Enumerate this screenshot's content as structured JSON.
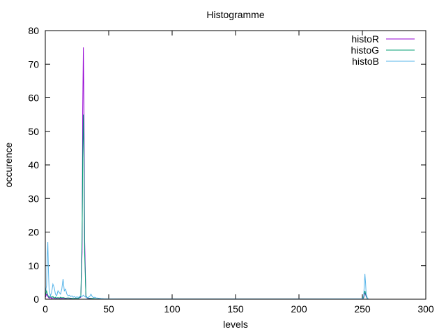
{
  "chart_data": {
    "type": "line",
    "title": "Histogramme",
    "xlabel": "levels",
    "ylabel": "occurence",
    "xlim": [
      0,
      300
    ],
    "ylim": [
      0,
      80
    ],
    "xticks": [
      0,
      50,
      100,
      150,
      200,
      250,
      300
    ],
    "yticks": [
      0,
      10,
      20,
      30,
      40,
      50,
      60,
      70,
      80
    ],
    "grid": false,
    "legend_position": "top-right",
    "series": [
      {
        "name": "histoR",
        "color": "#9400d3",
        "points": [
          [
            0,
            0.5
          ],
          [
            1,
            1.5
          ],
          [
            2,
            0.8
          ],
          [
            3,
            0.3
          ],
          [
            4,
            0.5
          ],
          [
            5,
            0.2
          ],
          [
            6,
            0.4
          ],
          [
            8,
            0.2
          ],
          [
            10,
            0.3
          ],
          [
            12,
            0.2
          ],
          [
            14,
            0.3
          ],
          [
            16,
            0.2
          ],
          [
            18,
            0.3
          ],
          [
            20,
            0.2
          ],
          [
            22,
            0.1
          ],
          [
            24,
            0.3
          ],
          [
            26,
            0.2
          ],
          [
            27,
            0.4
          ],
          [
            28,
            0.6
          ],
          [
            29,
            14
          ],
          [
            29.5,
            56
          ],
          [
            30,
            75
          ],
          [
            30.5,
            56
          ],
          [
            31,
            18
          ],
          [
            32,
            0.8
          ],
          [
            33,
            0.3
          ],
          [
            35,
            0.2
          ],
          [
            40,
            0.1
          ],
          [
            45,
            0.05
          ],
          [
            60,
            0.05
          ],
          [
            100,
            0.05
          ],
          [
            150,
            0.05
          ],
          [
            200,
            0.05
          ],
          [
            250,
            0.05
          ],
          [
            251,
            0.4
          ],
          [
            252,
            2
          ],
          [
            253,
            0.8
          ],
          [
            254,
            0.1
          ],
          [
            255,
            0
          ]
        ]
      },
      {
        "name": "histoG",
        "color": "#009e73",
        "points": [
          [
            0,
            1
          ],
          [
            1,
            2.5
          ],
          [
            2,
            1.2
          ],
          [
            3,
            0.5
          ],
          [
            4,
            1
          ],
          [
            5,
            0.5
          ],
          [
            6,
            0.8
          ],
          [
            7,
            0.3
          ],
          [
            8,
            0.6
          ],
          [
            9,
            0.3
          ],
          [
            10,
            0.5
          ],
          [
            11,
            0.3
          ],
          [
            12,
            0.6
          ],
          [
            13,
            0.4
          ],
          [
            14,
            0.5
          ],
          [
            16,
            0.3
          ],
          [
            18,
            0.4
          ],
          [
            20,
            0.3
          ],
          [
            22,
            0.2
          ],
          [
            24,
            0.3
          ],
          [
            26,
            0.2
          ],
          [
            27,
            0.5
          ],
          [
            28,
            0.8
          ],
          [
            29,
            18
          ],
          [
            29.5,
            42
          ],
          [
            30,
            55
          ],
          [
            30.5,
            42
          ],
          [
            31,
            14
          ],
          [
            32,
            1
          ],
          [
            33,
            0.4
          ],
          [
            35,
            0.3
          ],
          [
            40,
            0.1
          ],
          [
            45,
            0.05
          ],
          [
            60,
            0.05
          ],
          [
            100,
            0.05
          ],
          [
            150,
            0.05
          ],
          [
            200,
            0.05
          ],
          [
            250,
            0.05
          ],
          [
            251,
            0.5
          ],
          [
            252,
            2.5
          ],
          [
            253,
            1
          ],
          [
            254,
            0.1
          ],
          [
            255,
            0
          ]
        ]
      },
      {
        "name": "histoB",
        "color": "#56b4e9",
        "points": [
          [
            0,
            2
          ],
          [
            1,
            4
          ],
          [
            1.5,
            12.5
          ],
          [
            2,
            17
          ],
          [
            2.5,
            8
          ],
          [
            3,
            3
          ],
          [
            4,
            1
          ],
          [
            5,
            2
          ],
          [
            6,
            4.5
          ],
          [
            7,
            3.5
          ],
          [
            8,
            1.5
          ],
          [
            9,
            1
          ],
          [
            10,
            2.5
          ],
          [
            11,
            2
          ],
          [
            12,
            1.5
          ],
          [
            13,
            3
          ],
          [
            14,
            6
          ],
          [
            15,
            2.5
          ],
          [
            16,
            3
          ],
          [
            17,
            1.5
          ],
          [
            18,
            1
          ],
          [
            19,
            1.2
          ],
          [
            20,
            0.8
          ],
          [
            21,
            1
          ],
          [
            22,
            0.6
          ],
          [
            23,
            0.8
          ],
          [
            24,
            0.5
          ],
          [
            25,
            0.7
          ],
          [
            26,
            0.5
          ],
          [
            27,
            0.8
          ],
          [
            28,
            1
          ],
          [
            29,
            0.8
          ],
          [
            30,
            1.2
          ],
          [
            31,
            0.8
          ],
          [
            32,
            0.6
          ],
          [
            33,
            0.5
          ],
          [
            34,
            0.6
          ],
          [
            35,
            0.8
          ],
          [
            36,
            1.5
          ],
          [
            37,
            0.8
          ],
          [
            38,
            0.5
          ],
          [
            39,
            0.6
          ],
          [
            40,
            0.4
          ],
          [
            42,
            0.3
          ],
          [
            44,
            0.2
          ],
          [
            46,
            0.15
          ],
          [
            50,
            0.1
          ],
          [
            60,
            0.05
          ],
          [
            100,
            0.05
          ],
          [
            150,
            0.05
          ],
          [
            200,
            0.05
          ],
          [
            250,
            0.1
          ],
          [
            251,
            1
          ],
          [
            251.5,
            4
          ],
          [
            252,
            7.5
          ],
          [
            252.5,
            5
          ],
          [
            253,
            1.5
          ],
          [
            254,
            0.3
          ],
          [
            255,
            0
          ]
        ]
      }
    ]
  }
}
